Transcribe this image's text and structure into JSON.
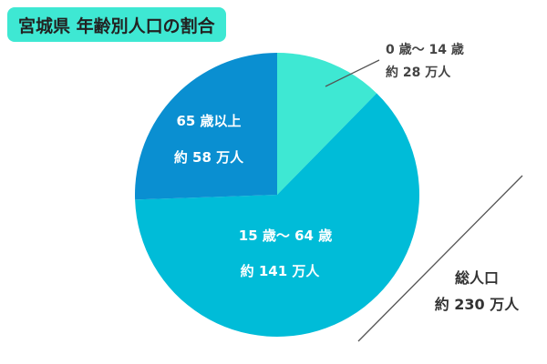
{
  "title": "宮城県 年齢別人口の割合",
  "title_bg": "#3ee8d3",
  "chart_data": {
    "type": "pie",
    "title": "宮城県 年齢別人口の割合",
    "start": "top",
    "direction": "clockwise",
    "unit": "万人",
    "slices": [
      {
        "category": "0 歳～ 14 歳",
        "value": 28,
        "value_label": "約 28 万人",
        "color": "#3ee8d3"
      },
      {
        "category": "15 歳～ 64 歳",
        "value": 141,
        "value_label": "約 141 万人",
        "color": "#00bcd8"
      },
      {
        "category": "65 歳以上",
        "value": 58,
        "value_label": "約 58 万人",
        "color": "#0a8fd1"
      }
    ],
    "total": {
      "label": "総人口",
      "value": 230,
      "value_label": "約 230 万人"
    }
  }
}
